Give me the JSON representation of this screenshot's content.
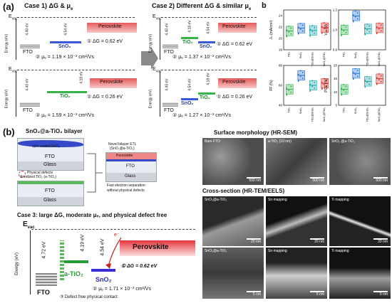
{
  "panel_a": {
    "label": "(a)",
    "case1_title": "Case 1) ΔG & μ",
    "case1_title_sub": "e",
    "case2_title": "Case 2) Different ΔG & similar μ",
    "case2_title_sub": "e",
    "evac": "E",
    "evac_sub": "vac",
    "energy_axis": "Energy (eV)",
    "fto": "FTO",
    "sno2": "SnO₂",
    "tio2": "TiO₂",
    "perovskite": "Perovskite",
    "electron": "e⁻",
    "e_440": "4.40 eV",
    "e_454": "4.54 eV",
    "e_418": "4.18 eV",
    "case1_top_dg": "① ΔG = 0.62 eV",
    "case1_top_mu": "② μₑ = 1.19 × 10⁻³ cm²/Vs",
    "case1_bot_dg": "① ΔG = 0.26 eV",
    "case1_bot_mu": "② μₑ = 1.59 × 10⁻³ cm²/Vs",
    "case2_top_dg": "① ΔG = 0.62 eV",
    "case2_top_mu": "② μₑ = 1.37 × 10⁻³ cm²/Vs",
    "case2_bot_dg": "① ΔG = 0.26 eV",
    "case2_bot_mu": "② μₑ = 1.27 × 10⁻³ cm²/Vs"
  },
  "panel_b_label": "b",
  "panel_b_big": "(b)",
  "boxplots": {
    "categories": [
      "TiO₂",
      "SnO₂",
      "TiO₂@SnO₂",
      "SnO₂@TiO₂"
    ],
    "colors": [
      "#2db34a",
      "#1f6fd1",
      "#1fa3a8",
      "#d9322b"
    ],
    "plots": [
      {
        "ylabel": "Jₛₗ (mA/cm²)",
        "ylim": [
          18,
          25
        ],
        "ticks": [
          "24",
          "22",
          "20",
          "18"
        ],
        "medians": [
          21.3,
          21.8,
          21.4,
          21.9
        ]
      },
      {
        "ylabel": "Vₒₖ (V)",
        "ylim": [
          0.8,
          1.2
        ],
        "ticks": [
          "1.2",
          "1.0",
          "0.8"
        ],
        "medians": [
          1.0,
          1.14,
          1.01,
          1.02
        ]
      },
      {
        "ylabel": "FF (%)",
        "ylim": [
          40,
          80
        ],
        "ticks": [
          "80",
          "60",
          "40"
        ],
        "medians": [
          56,
          70,
          60,
          62
        ]
      },
      {
        "ylabel": "PCE (%)",
        "ylim": [
          5,
          20
        ],
        "ticks": [
          "20",
          "15",
          "10",
          "5"
        ],
        "medians": [
          11,
          17,
          14,
          15
        ]
      }
    ]
  },
  "schematic": {
    "title": "SnO₂@a-TiO₂ bilayer",
    "spin": "spin-coated SnO₂",
    "fto": "FTO",
    "glass": "Glass",
    "defects": "Physical defects",
    "anodized": "Anodized TiO₂ (a-TiO₂)",
    "novel": "Novel bilayer ETL",
    "novel_sub": "(SnO₂@a-TiO₂)",
    "perovskite": "Perovskite",
    "fast": "Fast electron separation",
    "fast2": "without physical defects"
  },
  "case3": {
    "title": "Case 3: large ΔG, moderate μₑ, and physical defect free",
    "evac": "E",
    "evac_sub": "vac",
    "energy_axis": "Energy (eV)",
    "fto": "FTO",
    "atio2": "a-TiO₂",
    "sno2": "SnO₂",
    "perovskite": "Perovskite",
    "electron": "e⁻",
    "e472": "4.72 eV",
    "e419": "4.19 eV",
    "e454": "4.54 eV",
    "dg": "① ΔG = 0.62 eV",
    "mu": "② μₑ = 1.71 × 10⁻³ cm²/Vs",
    "contact": "③ Defect free physical contact"
  },
  "sem": {
    "title": "Surface morphology (HR-SEM)",
    "images": [
      {
        "caption": "Bare FTO",
        "scale": "500 nm"
      },
      {
        "caption": "a-TiO₂ (10 nm)",
        "scale": "500 nm"
      },
      {
        "caption": "SnO₂ @a-TiO₂",
        "scale": "500 nm"
      }
    ]
  },
  "tem": {
    "title": "Cross-section (HR-TEM/EELS)",
    "row1": [
      {
        "caption": "SnO₂@a-TiO₂",
        "scale": "20 nm"
      },
      {
        "caption": "Sn mapping",
        "scale": "20 nm"
      },
      {
        "caption": "Ti mapping",
        "scale": "20 nm"
      }
    ],
    "row2": [
      {
        "caption": "SnO₂@a-TiO₂",
        "scale": "5 nm"
      },
      {
        "caption": "Sn mapping",
        "scale": "5 nm"
      },
      {
        "caption": "Ti mapping",
        "scale": "5 nm"
      }
    ]
  }
}
